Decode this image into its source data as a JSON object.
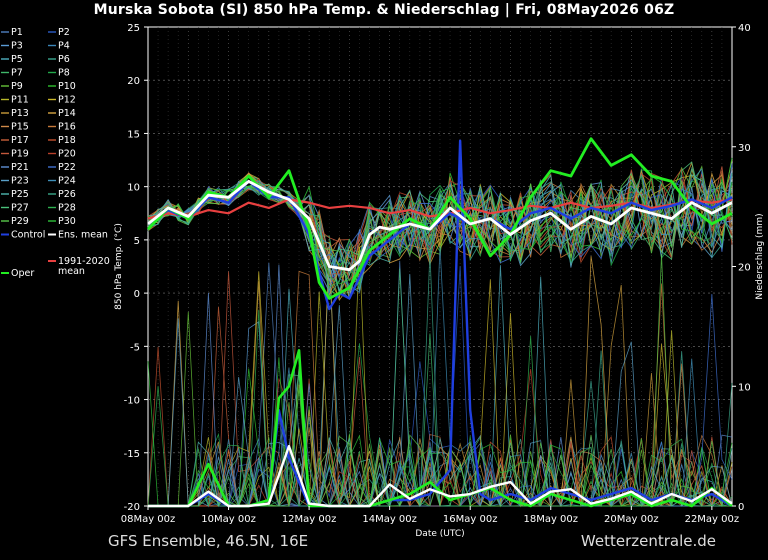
{
  "title": "Murska Sobota  (SI)  850 hPa Temp. & Niederschlag | Fri, 08May2026 06Z",
  "footer": {
    "left": "GFS Ensemble, 46.5N, 16E",
    "right": "Wetterzentrale.de"
  },
  "chart_data": {
    "type": "line",
    "xlabel": "Date (UTC)",
    "ylabel_left": "850 hPa Temp. (°C)",
    "ylabel_right": "Niederschlag (mm)",
    "ylim_left": [
      -20,
      25
    ],
    "ylim_right": [
      0,
      40
    ],
    "yticks_left": [
      25,
      20,
      15,
      10,
      5,
      0,
      -5,
      -10,
      -15,
      -20
    ],
    "yticks_right": [
      40,
      30,
      20,
      10,
      0
    ],
    "xticks": [
      "08May 00z",
      "10May 00z",
      "12May 00z",
      "14May 00z",
      "16May 00z",
      "18May 00z",
      "20May 00z",
      "22May 00z"
    ],
    "xlim_days": [
      0,
      14.5
    ],
    "background": "#000000",
    "grid": true,
    "legend": [
      {
        "label": "P1",
        "color": "#4f7fbf"
      },
      {
        "label": "P2",
        "color": "#2c5cc5"
      },
      {
        "label": "P3",
        "color": "#5a9bd5"
      },
      {
        "label": "P4",
        "color": "#3a86b8"
      },
      {
        "label": "P5",
        "color": "#4fb0c0"
      },
      {
        "label": "P6",
        "color": "#3aa590"
      },
      {
        "label": "P7",
        "color": "#3fb86a"
      },
      {
        "label": "P8",
        "color": "#22a84a"
      },
      {
        "label": "P9",
        "color": "#66c23a"
      },
      {
        "label": "P10",
        "color": "#2fbf2f"
      },
      {
        "label": "P11",
        "color": "#b8b82a"
      },
      {
        "label": "P12",
        "color": "#c9b52a"
      },
      {
        "label": "P13",
        "color": "#c89a3a"
      },
      {
        "label": "P14",
        "color": "#d7a542"
      },
      {
        "label": "P15",
        "color": "#d08a4a"
      },
      {
        "label": "P16",
        "color": "#c77a3a"
      },
      {
        "label": "P17",
        "color": "#c8603a"
      },
      {
        "label": "P18",
        "color": "#c2502e"
      },
      {
        "label": "P19",
        "color": "#c4583c"
      },
      {
        "label": "P20",
        "color": "#b8402a"
      },
      {
        "label": "P21",
        "color": "#5f8fd5"
      },
      {
        "label": "P22",
        "color": "#3f6fd0"
      },
      {
        "label": "P23",
        "color": "#5aa0c8"
      },
      {
        "label": "P24",
        "color": "#3f8fb8"
      },
      {
        "label": "P25",
        "color": "#4fb8b0"
      },
      {
        "label": "P26",
        "color": "#3aa88a"
      },
      {
        "label": "P27",
        "color": "#4ac07a"
      },
      {
        "label": "P28",
        "color": "#2fb050"
      },
      {
        "label": "P29",
        "color": "#5ac84a"
      },
      {
        "label": "P30",
        "color": "#2fc03a"
      },
      {
        "label": "Control",
        "color": "#1f3fe0"
      },
      {
        "label": "Ens. mean",
        "color": "#ffffff"
      },
      {
        "label": "Oper",
        "color": "#22ee22"
      },
      {
        "label": "1991-2020 mean",
        "color": "#e84040"
      }
    ],
    "ens_mean_temp": {
      "x": [
        0,
        0.5,
        1,
        1.5,
        2,
        2.5,
        3,
        3.5,
        4,
        4.5,
        5,
        5.25,
        5.5,
        5.75,
        6,
        6.5,
        7,
        7.5,
        8,
        8.5,
        9,
        9.5,
        10,
        10.5,
        11,
        11.5,
        12,
        12.5,
        13,
        13.5,
        14,
        14.5
      ],
      "y": [
        6.5,
        8.0,
        7.2,
        9.2,
        9.0,
        10.5,
        9.5,
        8.8,
        7.0,
        2.5,
        2.2,
        3.0,
        5.5,
        6.2,
        6.0,
        6.5,
        6.0,
        8.0,
        6.5,
        7.0,
        5.5,
        6.8,
        7.5,
        6.0,
        7.2,
        6.5,
        8.0,
        7.5,
        7.0,
        8.5,
        7.5,
        8.5
      ]
    },
    "climate_mean_temp": {
      "x": [
        0,
        0.5,
        1,
        1.5,
        2,
        2.5,
        3,
        3.5,
        4,
        4.5,
        5,
        5.5,
        6,
        6.5,
        7,
        7.5,
        8,
        8.5,
        9,
        9.5,
        10,
        10.5,
        11,
        11.5,
        12,
        12.5,
        13,
        13.5,
        14,
        14.5
      ],
      "y": [
        7.0,
        7.5,
        7.2,
        7.8,
        7.5,
        8.5,
        8.0,
        8.8,
        8.5,
        8.0,
        8.2,
        8.0,
        7.5,
        7.8,
        7.2,
        7.5,
        8.0,
        7.5,
        7.8,
        8.2,
        8.0,
        8.5,
        8.0,
        8.2,
        8.5,
        8.0,
        8.3,
        8.7,
        8.5,
        8.8
      ]
    },
    "oper_temp": {
      "x": [
        0,
        0.5,
        1,
        1.5,
        2,
        2.5,
        3,
        3.5,
        4,
        4.25,
        4.5,
        4.75,
        5,
        5.5,
        6,
        6.5,
        7,
        7.5,
        8,
        8.5,
        9,
        9.5,
        10,
        10.5,
        11,
        11.5,
        12,
        12.5,
        13,
        13.5,
        14,
        14.5
      ],
      "y": [
        6.0,
        8.0,
        7.0,
        9.5,
        9.0,
        11.0,
        9.0,
        11.5,
        6.0,
        1.0,
        -0.5,
        0.0,
        0.5,
        4.0,
        5.5,
        7.0,
        6.0,
        9.0,
        7.0,
        3.5,
        5.5,
        9.0,
        11.5,
        11.0,
        14.5,
        12.0,
        13.0,
        11.0,
        10.5,
        8.0,
        6.5,
        7.5
      ]
    },
    "control_temp": {
      "x": [
        0,
        0.5,
        1,
        1.5,
        2,
        2.5,
        3,
        3.5,
        4,
        4.5,
        4.75,
        5,
        5.5,
        6,
        6.5,
        7,
        7.5,
        8,
        8.5,
        9,
        9.5,
        10,
        10.5,
        11,
        11.5,
        12,
        12.5,
        13,
        13.5,
        14,
        14.5
      ],
      "y": [
        6.5,
        7.8,
        7.0,
        9.0,
        8.5,
        10.5,
        9.0,
        9.0,
        5.5,
        -1.5,
        0.0,
        -0.5,
        3.5,
        5.0,
        6.5,
        6.0,
        7.5,
        6.5,
        7.0,
        6.0,
        7.5,
        8.0,
        7.0,
        8.0,
        7.5,
        8.5,
        7.8,
        8.2,
        8.8,
        8.0,
        9.0
      ]
    },
    "ens_mean_precip": {
      "x": [
        0,
        0.5,
        1,
        1.5,
        2,
        2.5,
        3,
        3.5,
        4,
        4.5,
        5,
        5.5,
        6,
        6.5,
        7,
        7.5,
        8,
        8.5,
        9,
        9.5,
        10,
        10.5,
        11,
        11.5,
        12,
        12.5,
        13,
        13.5,
        14,
        14.5
      ],
      "y": [
        0,
        0,
        0,
        1.2,
        0,
        0,
        0.2,
        5.0,
        0.2,
        0,
        0,
        0,
        1.8,
        0.6,
        1.4,
        0.8,
        1.0,
        1.6,
        2.0,
        0.2,
        1.2,
        1.4,
        0.2,
        0.6,
        1.2,
        0.2,
        1.0,
        0.4,
        1.4,
        0.2
      ]
    },
    "oper_precip": {
      "x": [
        0,
        0.5,
        1,
        1.5,
        2,
        2.5,
        3,
        3.25,
        3.5,
        3.75,
        4,
        4.5,
        5,
        5.5,
        6,
        6.5,
        7,
        7.5,
        8,
        8.5,
        9,
        9.5,
        10,
        10.5,
        11,
        11.5,
        12,
        12.5,
        13,
        13.5,
        14,
        14.5
      ],
      "y": [
        0,
        0,
        0,
        3.5,
        0,
        0,
        0.5,
        9.0,
        10.0,
        13.0,
        0,
        0,
        0,
        0,
        0.5,
        1.0,
        2.0,
        0.5,
        1.0,
        1.5,
        0.5,
        0,
        1.0,
        0.5,
        0,
        0.5,
        1.0,
        0,
        0.5,
        0,
        1.5,
        0
      ]
    },
    "control_precip": {
      "x": [
        0,
        0.5,
        1,
        1.5,
        2,
        2.5,
        3,
        3.25,
        3.5,
        3.75,
        4,
        4.5,
        5,
        5.5,
        6,
        6.5,
        7,
        7.5,
        7.75,
        8,
        8.25,
        8.5,
        9,
        9.5,
        10,
        10.5,
        11,
        11.5,
        12,
        12.5,
        13,
        13.5,
        14,
        14.5
      ],
      "y": [
        0,
        0,
        0,
        1.0,
        0,
        0,
        0.5,
        8.0,
        4.0,
        2.0,
        0,
        0,
        0,
        0,
        0.5,
        0.5,
        1.0,
        3.0,
        30.5,
        8.0,
        1.0,
        0.5,
        1.0,
        0.5,
        1.5,
        1.0,
        0.5,
        1.0,
        1.5,
        0.5,
        1.0,
        0.5,
        1.0,
        0
      ]
    }
  }
}
